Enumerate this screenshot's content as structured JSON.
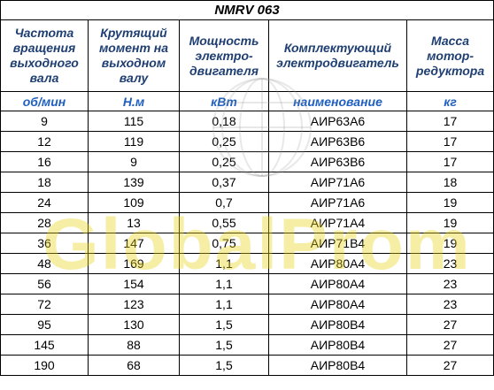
{
  "title": "NMRV 063",
  "headers": [
    "Частота вращения выходного вала",
    "Крутящий момент на выходном валу",
    "Мощность электро-двигателя",
    "Комплектующий электродвигатель",
    "Масса мотор-редуктора"
  ],
  "units": [
    "об/мин",
    "Н.м",
    "кВт",
    "наименование",
    "кг"
  ],
  "rows": [
    [
      "9",
      "115",
      "0,18",
      "АИР63А6",
      "17"
    ],
    [
      "12",
      "119",
      "0,25",
      "АИР63В6",
      "17"
    ],
    [
      "16",
      "9",
      "0,25",
      "АИР63В6",
      "17"
    ],
    [
      "18",
      "139",
      "0,37",
      "АИР71А6",
      "18"
    ],
    [
      "24",
      "109",
      "0,7",
      "АИР71А6",
      "19"
    ],
    [
      "28",
      "13",
      "0,55",
      "АИР71А4",
      "19"
    ],
    [
      "36",
      "147",
      "0,75",
      "АИР71В4",
      "19"
    ],
    [
      "48",
      "169",
      "1,1",
      "АИР80А4",
      "23"
    ],
    [
      "56",
      "154",
      "1,1",
      "АИР80А4",
      "23"
    ],
    [
      "72",
      "123",
      "1,1",
      "АИР80А4",
      "23"
    ],
    [
      "95",
      "130",
      "1,5",
      "АИР80В4",
      "27"
    ],
    [
      "145",
      "88",
      "1,5",
      "АИР80В4",
      "27"
    ],
    [
      "190",
      "68",
      "1,5",
      "АИР80В4",
      "27"
    ]
  ],
  "watermark": "GlobalProm",
  "colors": {
    "header_text": "#1f3f73",
    "unit_text": "#1f5fbf",
    "watermark": "#ebd214"
  }
}
